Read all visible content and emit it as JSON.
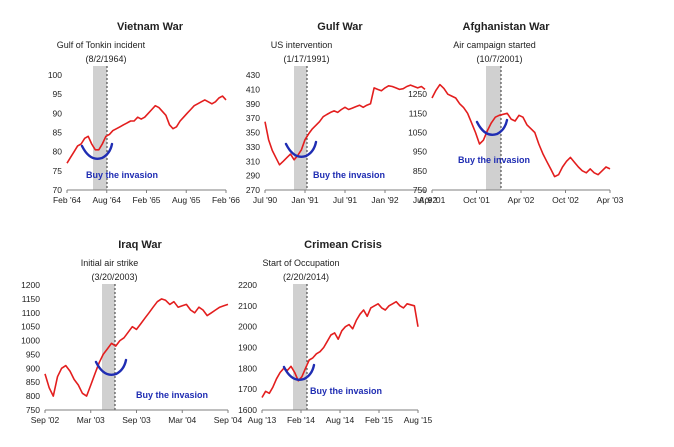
{
  "chart_data": [
    {
      "type": "line",
      "title": "Vietnam War",
      "annotation": {
        "label": "Gulf of Tonkin incident",
        "date": "(8/2/1964)"
      },
      "buy_label": "Buy the invasion",
      "ylim": [
        70,
        100
      ],
      "yticks": [
        "70",
        "75",
        "80",
        "85",
        "90",
        "95",
        "100"
      ],
      "xticks": [
        "Feb '64",
        "Aug '64",
        "Feb '65",
        "Aug '65",
        "Feb '66"
      ],
      "series": [
        {
          "values": [
            77,
            78.5,
            80,
            81.5,
            82,
            83.5,
            84,
            82,
            80.5,
            80.5,
            82,
            84,
            84.5,
            85.5,
            86,
            86.5,
            87,
            87.5,
            88,
            88,
            89,
            88.5,
            89,
            90,
            91,
            92,
            91.5,
            90.5,
            89.5,
            87,
            86,
            86.5,
            88,
            89,
            90,
            91,
            92,
            92.5,
            93,
            93.5,
            93,
            92.5,
            93,
            94,
            94.5,
            93.5
          ]
        }
      ]
    },
    {
      "type": "line",
      "title": "Gulf War",
      "annotation": {
        "label": "US intervention",
        "date": "(1/17/1991)"
      },
      "buy_label": "Buy the invasion",
      "ylim": [
        270,
        430
      ],
      "yticks": [
        "270",
        "290",
        "310",
        "330",
        "350",
        "370",
        "390",
        "410",
        "430"
      ],
      "xticks": [
        "Jul '90",
        "Jan '91",
        "Jul '91",
        "Jan '92",
        "Jul '92"
      ],
      "series": [
        {
          "values": [
            365,
            340,
            325,
            315,
            305,
            310,
            315,
            320,
            312,
            318,
            326,
            340,
            348,
            355,
            360,
            365,
            372,
            375,
            378,
            380,
            378,
            382,
            385,
            382,
            384,
            386,
            388,
            385,
            388,
            390,
            412,
            410,
            408,
            412,
            415,
            414,
            412,
            410,
            411,
            414,
            416,
            414,
            412,
            414,
            410
          ]
        }
      ]
    },
    {
      "type": "line",
      "title": "Afghanistan War",
      "annotation": {
        "label": "Air campaign started",
        "date": "(10/7/2001)"
      },
      "buy_label": "Buy the invasion",
      "ylim": [
        750,
        1350
      ],
      "yticks": [
        "750",
        "850",
        "950",
        "1050",
        "1150",
        "1250"
      ],
      "xticks": [
        "Apr '01",
        "Oct '01",
        "Apr '02",
        "Oct '02",
        "Apr '03"
      ],
      "series": [
        {
          "values": [
            1230,
            1270,
            1300,
            1280,
            1250,
            1240,
            1230,
            1200,
            1180,
            1150,
            1100,
            1050,
            990,
            1010,
            1060,
            1100,
            1130,
            1140,
            1145,
            1150,
            1120,
            1110,
            1140,
            1130,
            1090,
            1070,
            1050,
            990,
            940,
            900,
            860,
            820,
            830,
            870,
            900,
            920,
            895,
            870,
            850,
            840,
            860,
            840,
            830,
            850,
            870,
            860
          ]
        }
      ]
    },
    {
      "type": "line",
      "title": "Iraq War",
      "annotation": {
        "label": "Initial air strike",
        "date": "(3/20/2003)"
      },
      "buy_label": "Buy the invasion",
      "ylim": [
        750,
        1200
      ],
      "yticks": [
        "750",
        "800",
        "850",
        "900",
        "950",
        "1000",
        "1050",
        "1100",
        "1150",
        "1200"
      ],
      "xticks": [
        "Sep '02",
        "Mar '03",
        "Sep '03",
        "Mar '04",
        "Sep '04"
      ],
      "series": [
        {
          "values": [
            880,
            830,
            800,
            870,
            900,
            910,
            890,
            860,
            840,
            810,
            800,
            840,
            880,
            920,
            950,
            970,
            990,
            980,
            1000,
            1010,
            1030,
            1050,
            1040,
            1060,
            1080,
            1100,
            1120,
            1140,
            1150,
            1145,
            1130,
            1140,
            1120,
            1125,
            1130,
            1110,
            1100,
            1120,
            1110,
            1090,
            1100,
            1110,
            1120,
            1125,
            1130
          ]
        }
      ]
    },
    {
      "type": "line",
      "title": "Crimean Crisis",
      "annotation": {
        "label": "Start of Occupation",
        "date": "(2/20/2014)"
      },
      "buy_label": "Buy the invasion",
      "ylim": [
        1600,
        2200
      ],
      "yticks": [
        "1600",
        "1700",
        "1800",
        "1900",
        "2000",
        "2100",
        "2200"
      ],
      "xticks": [
        "Aug '13",
        "Feb '14",
        "Aug '14",
        "Feb '15",
        "Aug '15"
      ],
      "series": [
        {
          "values": [
            1660,
            1690,
            1680,
            1710,
            1750,
            1780,
            1800,
            1790,
            1810,
            1780,
            1740,
            1760,
            1800,
            1840,
            1850,
            1870,
            1880,
            1900,
            1930,
            1960,
            1970,
            1940,
            1980,
            2000,
            2010,
            1990,
            2030,
            2060,
            2080,
            2050,
            2090,
            2100,
            2110,
            2090,
            2080,
            2100,
            2110,
            2120,
            2100,
            2090,
            2110,
            2105,
            2100,
            2000
          ]
        }
      ]
    }
  ],
  "colors": {
    "line": "#e31e1e",
    "shade": "#c8c8c8",
    "arrow": "#1f2db3",
    "axis": "#7f7f7f",
    "text": "#222222"
  }
}
